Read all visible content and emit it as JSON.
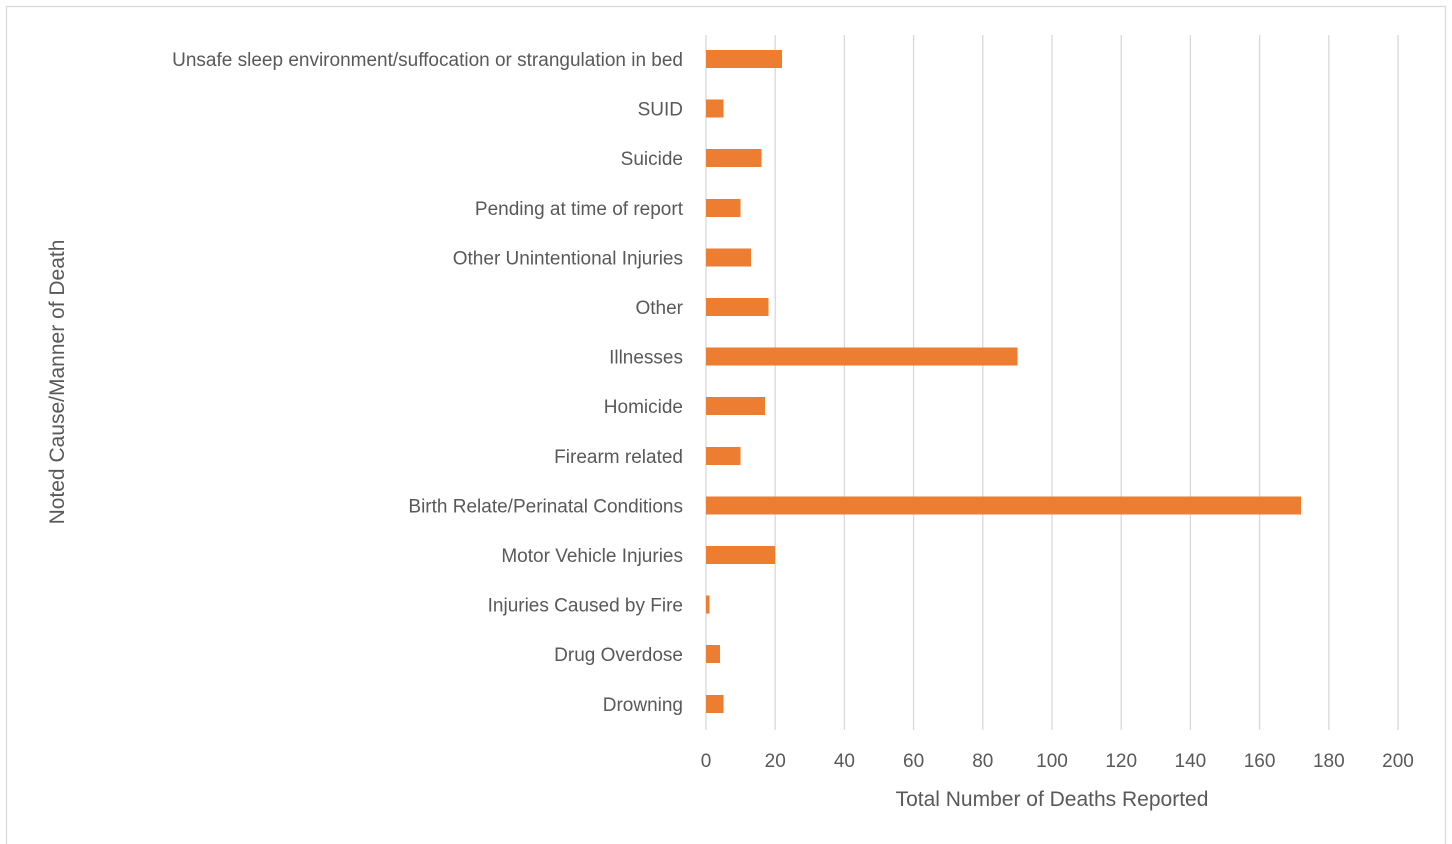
{
  "chart_data": {
    "type": "bar",
    "orientation": "horizontal",
    "categories": [
      "Unsafe sleep environment/suffocation or strangulation in bed",
      "SUID",
      "Suicide",
      "Pending at time of report",
      "Other Unintentional Injuries",
      "Other",
      "Illnesses",
      "Homicide",
      "Firearm related",
      "Birth Relate/Perinatal Conditions",
      "Motor Vehicle Injuries",
      "Injuries Caused by Fire",
      "Drug Overdose",
      "Drowning"
    ],
    "values": [
      22,
      5,
      16,
      10,
      13,
      18,
      90,
      17,
      10,
      172,
      20,
      1,
      4,
      5
    ],
    "title": "",
    "xlabel": "Total Number of Deaths Reported",
    "ylabel": "Noted Cause/Manner of Death",
    "xlim": [
      0,
      200
    ],
    "xticks": [
      0,
      20,
      40,
      60,
      80,
      100,
      120,
      140,
      160,
      180,
      200
    ],
    "grid": "vertical",
    "legend": "none",
    "bar_color": "#ED7D31",
    "frame_color": "#D9D9D9"
  }
}
